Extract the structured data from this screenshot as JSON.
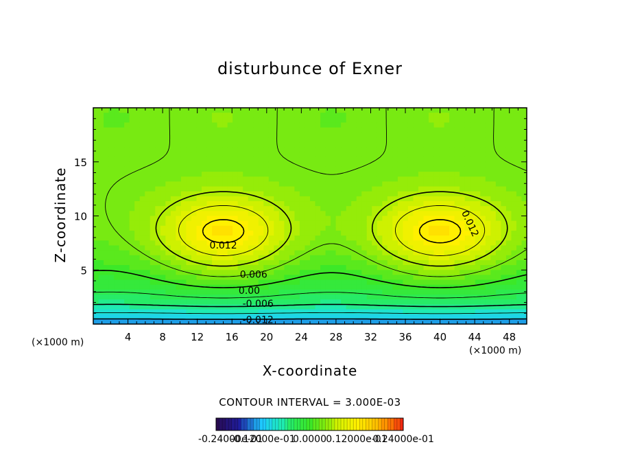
{
  "chart_data": {
    "type": "heatmap",
    "title": "disturbunce of Exner",
    "xlabel": "X-coordinate",
    "ylabel": "Z-coordinate",
    "x_unit_label_left": "(×1000 m)",
    "x_unit_label_right": "(×1000 m)",
    "xlim": [
      0,
      50
    ],
    "ylim": [
      0,
      20
    ],
    "x_ticks": [
      4,
      8,
      12,
      16,
      20,
      24,
      28,
      32,
      36,
      40,
      44,
      48
    ],
    "y_ticks": [
      5,
      10,
      15
    ],
    "contour_interval_text": "CONTOUR INTERVAL = 3.000E-03",
    "contour_labels": [
      {
        "text": "0.012",
        "x": 15,
        "z": 7.3
      },
      {
        "text": "0.012",
        "x": 43.5,
        "z": 9.3
      },
      {
        "text": "0.006",
        "x": 18.5,
        "z": 4.6
      },
      {
        "text": "0.00",
        "x": 18,
        "z": 3.1
      },
      {
        "text": "-0.006",
        "x": 19,
        "z": 1.9
      },
      {
        "text": "-0.012",
        "x": 19,
        "z": 0.4
      }
    ],
    "features": {
      "maxima": [
        {
          "x": 15,
          "z": 8.5,
          "value": 0.0135
        },
        {
          "x": 40,
          "z": 8.5,
          "value": 0.0135
        }
      ],
      "value_at_bottom": -0.015,
      "value_at_top": 0.003
    },
    "colorbar": {
      "colors": [
        "#2a0a4a",
        "#1f1f9e",
        "#1f66ff",
        "#25c8f5",
        "#28e8a0",
        "#45e83a",
        "#b8f000",
        "#ffee00",
        "#ff9a00",
        "#f03010"
      ],
      "tick_labels": [
        "-0.24000e-01",
        "-0.12000e-01",
        "0.0000",
        "0.12000e-01",
        "0.24000e-01"
      ],
      "tick_values": [
        -0.024,
        -0.012,
        0.0,
        0.012,
        0.024
      ],
      "range": [
        -0.024,
        0.024
      ]
    }
  }
}
